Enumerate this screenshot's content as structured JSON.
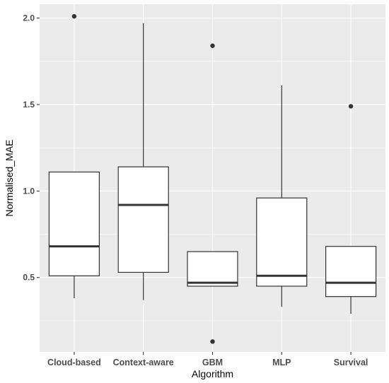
{
  "chart_data": {
    "type": "boxplot",
    "title": "",
    "xlabel": "Algorithm",
    "ylabel": "Normalised_MAE",
    "categories": [
      "Cloud-based",
      "Context-aware",
      "GBM",
      "MLP",
      "Survival"
    ],
    "y_ticks": [
      0.5,
      1.0,
      1.5,
      2.0
    ],
    "y_tick_labels": [
      "0.5",
      "1.0",
      "1.5",
      "2.0"
    ],
    "ylim": [
      0.07,
      2.08
    ],
    "grid": true,
    "legend": "none",
    "boxes": [
      {
        "category": "Cloud-based",
        "whisker_low": 0.38,
        "q1": 0.51,
        "median": 0.68,
        "q3": 1.11,
        "whisker_high": 1.11,
        "outliers": [
          2.01
        ]
      },
      {
        "category": "Context-aware",
        "whisker_low": 0.37,
        "q1": 0.53,
        "median": 0.92,
        "q3": 1.14,
        "whisker_high": 1.97,
        "outliers": []
      },
      {
        "category": "GBM",
        "whisker_low": 0.45,
        "q1": 0.45,
        "median": 0.47,
        "q3": 0.65,
        "whisker_high": 0.65,
        "outliers": [
          1.84,
          0.13
        ]
      },
      {
        "category": "MLP",
        "whisker_low": 0.33,
        "q1": 0.45,
        "median": 0.51,
        "q3": 0.96,
        "whisker_high": 1.61,
        "outliers": []
      },
      {
        "category": "Survival",
        "whisker_low": 0.29,
        "q1": 0.39,
        "median": 0.47,
        "q3": 0.68,
        "whisker_high": 0.68,
        "outliers": [
          1.49
        ]
      }
    ],
    "colors": {
      "panel_background": "#ebebeb",
      "grid_major": "#ffffff",
      "box_fill": "#ffffff",
      "box_stroke": "#333333",
      "outlier": "#333333"
    }
  }
}
